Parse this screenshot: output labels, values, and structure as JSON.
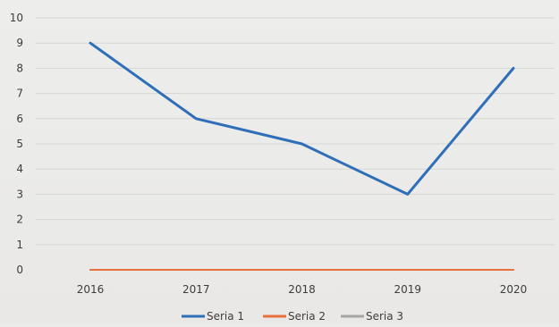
{
  "chart_data": {
    "type": "line",
    "title": "",
    "xlabel": "",
    "ylabel": "",
    "categories": [
      "2016",
      "2017",
      "2018",
      "2019",
      "2020"
    ],
    "ylim": [
      0,
      10
    ],
    "yticks": [
      "0",
      "1",
      "2",
      "3",
      "4",
      "5",
      "6",
      "7",
      "8",
      "9",
      "10"
    ],
    "grid": true,
    "legend_position": "bottom",
    "series": [
      {
        "name": "Seria 1",
        "color": "#2f6fb8",
        "values": [
          9,
          6,
          5,
          3,
          8
        ]
      },
      {
        "name": "Seria 2",
        "color": "#e8703a",
        "values": [
          0,
          0,
          0,
          0,
          0
        ]
      },
      {
        "name": "Seria 3",
        "color": "#a5a5a5",
        "values": [
          0,
          0,
          0,
          0,
          0
        ]
      }
    ]
  }
}
